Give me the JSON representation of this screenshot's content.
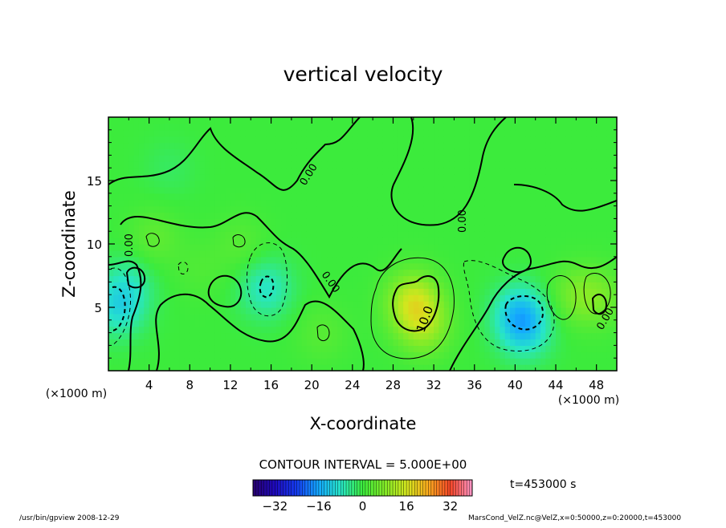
{
  "chart_data": {
    "type": "heatmap",
    "title": "vertical velocity",
    "xlabel": "X-coordinate",
    "ylabel": "Z-coordinate",
    "x_unit": "(×1000 m)",
    "y_unit": "(×1000 m)",
    "xlim": [
      0,
      50
    ],
    "ylim": [
      0,
      20
    ],
    "x_ticks": [
      4,
      8,
      12,
      16,
      20,
      24,
      28,
      32,
      36,
      40,
      44,
      48
    ],
    "y_ticks": [
      5,
      10,
      15
    ],
    "contour_interval_text": "CONTOUR INTERVAL = 5.000E+00",
    "contour_labels": [
      "0.00",
      "0.00",
      "0.00",
      "0.00",
      "0.00",
      "0.00",
      "10.0"
    ],
    "time_label": "t=453000 s",
    "colorbar": {
      "range": [
        -40,
        40
      ],
      "ticks": [
        -32,
        -16,
        0,
        16,
        32
      ],
      "tick_labels": [
        "−32",
        "−16",
        "0",
        "16",
        "32"
      ]
    },
    "field_features": [
      {
        "kind": "max",
        "x": 30,
        "z": 5.5,
        "value": 14
      },
      {
        "kind": "max",
        "x": 31,
        "z": 3.5,
        "value": 9
      },
      {
        "kind": "min",
        "x": 40.5,
        "z": 4.5,
        "value": -12
      },
      {
        "kind": "min",
        "x": 41,
        "z": 3,
        "value": -7
      },
      {
        "kind": "min",
        "x": 15.5,
        "z": 6.5,
        "value": -8
      },
      {
        "kind": "min",
        "x": 1,
        "z": 5,
        "value": -9
      },
      {
        "kind": "min",
        "x": 2,
        "z": 7,
        "value": -5
      },
      {
        "kind": "max",
        "x": 46,
        "z": 6,
        "value": 6
      },
      {
        "kind": "max",
        "x": 48.5,
        "z": 5.8,
        "value": 5
      },
      {
        "kind": "max",
        "x": 4.5,
        "z": 10.5,
        "value": 4
      },
      {
        "kind": "max",
        "x": 13,
        "z": 10,
        "value": 3
      },
      {
        "kind": "min",
        "x": 6,
        "z": 16,
        "value": -2
      },
      {
        "kind": "max",
        "x": 9,
        "z": 8,
        "value": 2
      },
      {
        "kind": "max",
        "x": 21,
        "z": 3,
        "value": 3
      }
    ]
  },
  "footer": {
    "left": "/usr/bin/gpview   2008-12-29",
    "right": "MarsCond_VelZ.nc@VelZ,x=0:50000,z=0:20000,t=453000"
  }
}
